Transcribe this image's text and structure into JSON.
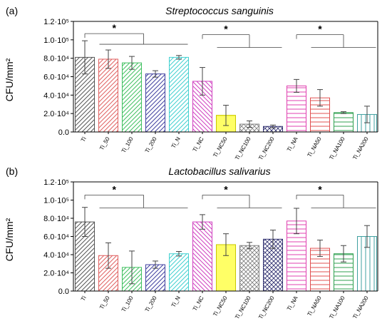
{
  "chart_data": [
    {
      "type": "bar",
      "panel_label": "(a)",
      "title": "Streptococcus sanguinis",
      "ylabel": "CFU/mm2",
      "ylabel_display": "CFU/mm²",
      "ylim": [
        0,
        120000
      ],
      "yticks": [
        {
          "value": 0,
          "label": "0.0"
        },
        {
          "value": 20000,
          "label": "2.0·10⁴"
        },
        {
          "value": 40000,
          "label": "4.0·10⁴"
        },
        {
          "value": 60000,
          "label": "6.0·10⁴"
        },
        {
          "value": 80000,
          "label": "8.0·10⁴"
        },
        {
          "value": 100000,
          "label": "1.0·10⁵"
        },
        {
          "value": 120000,
          "label": "1.2·10⁵"
        }
      ],
      "categories": [
        "Ti",
        "Ti_50",
        "Ti_100",
        "Ti_200",
        "Ti_N",
        "Ti_NC",
        "Ti_NC50",
        "Ti_NC100",
        "Ti_NC200",
        "Ti_NA",
        "Ti_NA50",
        "Ti_NA100",
        "Ti_NA200"
      ],
      "values": [
        81000,
        79000,
        75000,
        63000,
        81000,
        55000,
        18000,
        8500,
        6000,
        50000,
        37000,
        21000,
        19000
      ],
      "errors": [
        18000,
        10000,
        7000,
        3500,
        2000,
        15000,
        11000,
        3500,
        1500,
        7000,
        9000,
        1000,
        9000
      ],
      "significance": [
        {
          "label": "*",
          "from": 0,
          "to": [
            1,
            2,
            3,
            4
          ]
        },
        {
          "label": "*",
          "from": 5,
          "to": [
            6,
            7,
            8
          ]
        },
        {
          "label": "*",
          "from": 9,
          "to": [
            10,
            11,
            12
          ]
        }
      ],
      "grid": false
    },
    {
      "type": "bar",
      "panel_label": "(b)",
      "title": "Lactobacillus salivarius",
      "ylabel": "CFU/mm2",
      "ylabel_display": "CFU/mm²",
      "ylim": [
        0,
        120000
      ],
      "yticks": [
        {
          "value": 0,
          "label": "0.0"
        },
        {
          "value": 20000,
          "label": "2.0·10⁴"
        },
        {
          "value": 40000,
          "label": "4.0·10⁴"
        },
        {
          "value": 60000,
          "label": "6.0·10⁴"
        },
        {
          "value": 80000,
          "label": "8.0·10⁴"
        },
        {
          "value": 100000,
          "label": "1.0·10⁵"
        },
        {
          "value": 120000,
          "label": "1.2·10⁵"
        }
      ],
      "categories": [
        "Ti",
        "Ti_50",
        "Ti_100",
        "Ti_200",
        "Ti_N",
        "Ti_NC",
        "Ti_NC50",
        "Ti_NC100",
        "Ti_NC200",
        "Ti_NA",
        "Ti_NA50",
        "Ti_NA100",
        "Ti_NA200"
      ],
      "values": [
        76000,
        39000,
        26000,
        29000,
        41000,
        76000,
        51000,
        50000,
        57000,
        77000,
        47000,
        41000,
        60000
      ],
      "errors": [
        16000,
        14000,
        18000,
        4000,
        2500,
        8000,
        12000,
        3500,
        10000,
        14000,
        9000,
        9000,
        12000
      ],
      "significance": [
        {
          "label": "*",
          "from": 0,
          "to": [
            1,
            2,
            3,
            4
          ]
        },
        {
          "label": "*",
          "from": 5,
          "to": [
            6,
            7,
            8
          ]
        },
        {
          "label": "*",
          "from": 9,
          "to": [
            10,
            11,
            12
          ]
        }
      ],
      "grid": false
    }
  ],
  "colors": {
    "Ti": "#555555",
    "Ti_50": "#e06060",
    "Ti_100": "#40c060",
    "Ti_200": "#4040a0",
    "Ti_N": "#40d0d0",
    "Ti_NC": "#d040c0",
    "Ti_NC50": "#f0f000",
    "Ti_NC100": "#808080",
    "Ti_NC200": "#303070",
    "Ti_NA": "#e040b0",
    "Ti_NA50": "#e05050",
    "Ti_NA100": "#30a050",
    "Ti_NA200": "#40a0a0"
  }
}
